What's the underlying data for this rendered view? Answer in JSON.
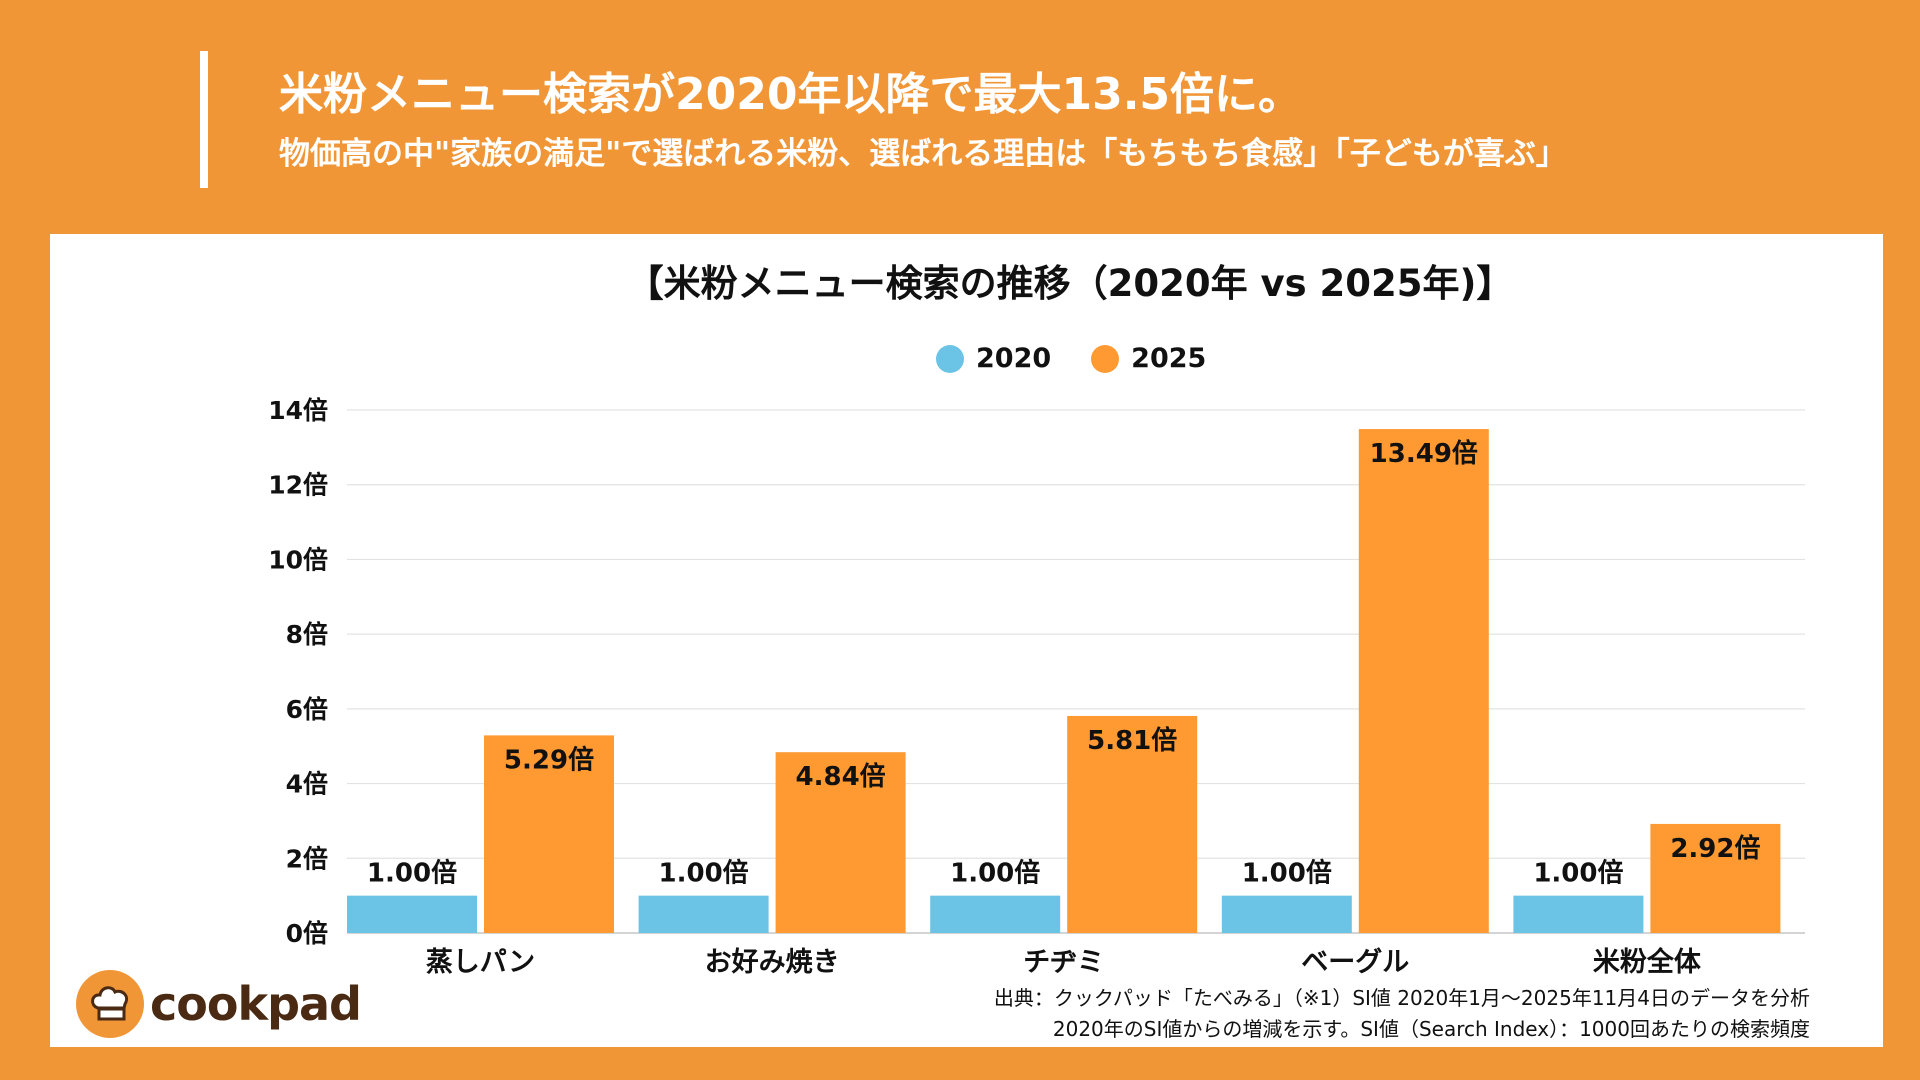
{
  "header": {
    "title": "米粉メニュー検索が2020年以降で最大13.5倍に。",
    "subtitle": "物価高の中\"家族の満足\"で選ばれる米粉、選ばれる理由は「もちもち食感」「子どもが喜ぶ」"
  },
  "chart_data": {
    "type": "bar",
    "title": "【米粉メニュー検索の推移（2020年 vs 2025年)】",
    "categories": [
      "蒸しパン",
      "お好み焼き",
      "チヂミ",
      "ベーグル",
      "米粉全体"
    ],
    "series": [
      {
        "name": "2020",
        "color": "#6BC3E6",
        "values": [
          1.0,
          1.0,
          1.0,
          1.0,
          1.0
        ]
      },
      {
        "name": "2025",
        "color": "#FF9A33",
        "values": [
          5.29,
          4.84,
          5.81,
          13.49,
          2.92
        ]
      }
    ],
    "value_suffix": "倍",
    "yticks": [
      0,
      2,
      4,
      6,
      8,
      10,
      12,
      14
    ],
    "ylim": [
      0,
      14
    ],
    "grid": true,
    "legend": "top-center"
  },
  "footer": {
    "source_line1": "出典：クックパッド「たべみる」（※1）SI値 2020年1月〜2025年11月4日のデータを分析",
    "source_line2": "2020年のSI値からの増減を示す。SI値（Search Index）：1000回あたりの検索頻度",
    "logo_text": "cookpad"
  },
  "colors": {
    "background": "#F19636",
    "panel": "#FFFFFF"
  }
}
